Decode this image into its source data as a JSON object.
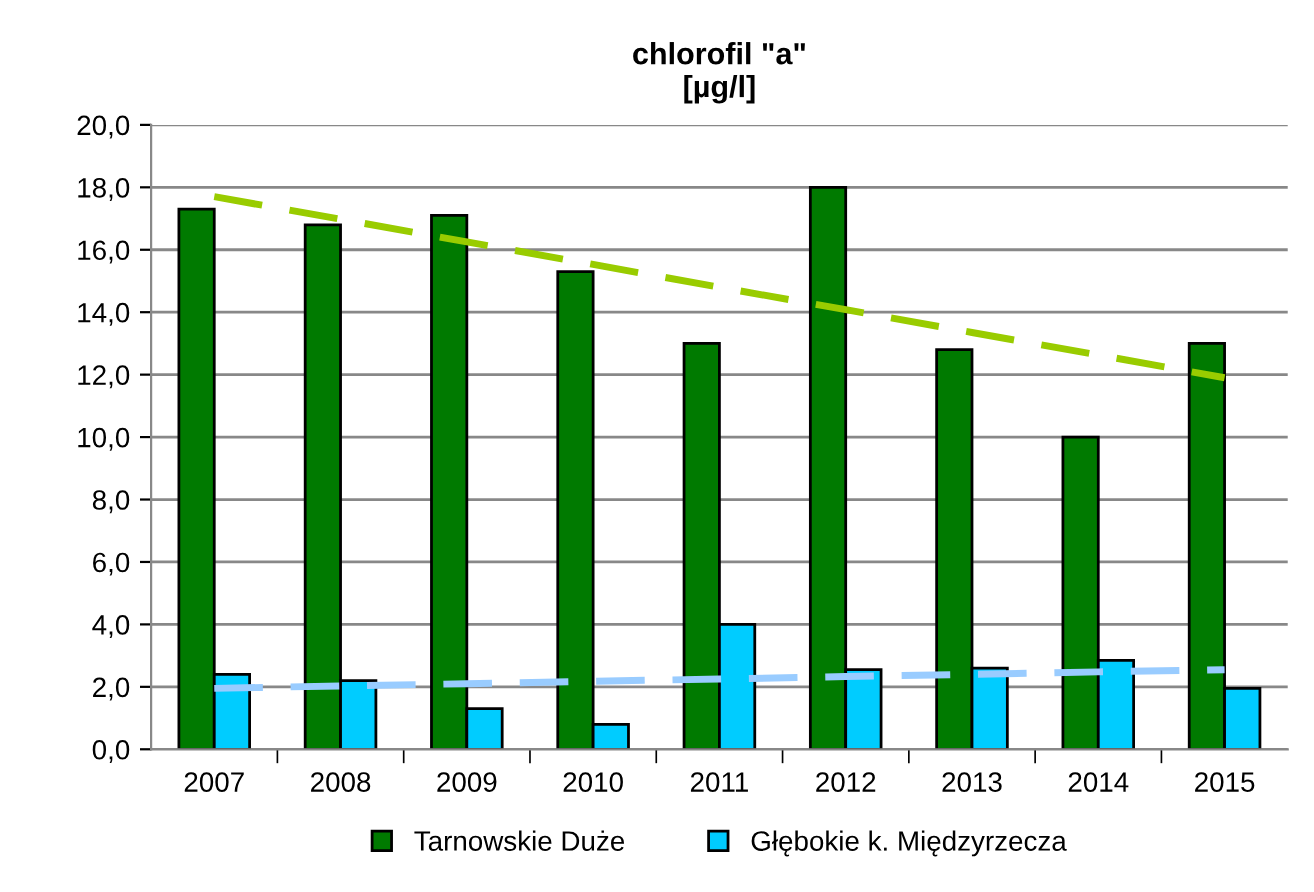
{
  "chart_data": {
    "type": "bar",
    "title": "chlorofil \"a\"\n[µg/l]",
    "categories": [
      "2007",
      "2008",
      "2009",
      "2010",
      "2011",
      "2012",
      "2013",
      "2014",
      "2015"
    ],
    "series": [
      {
        "name": "Tarnowskie Duże",
        "color": "#007a00",
        "values": [
          17.3,
          16.8,
          17.1,
          15.3,
          13.0,
          18.0,
          12.8,
          10.0,
          13.0
        ]
      },
      {
        "name": "Głębokie k. Międzyrzecza",
        "color": "#00ccff",
        "values": [
          2.4,
          2.2,
          1.3,
          0.8,
          4.0,
          2.55,
          2.6,
          2.85,
          1.95
        ]
      },
      {
        "type": "line",
        "color": "#99cc00",
        "line_style": "dashed",
        "values": [
          17.7,
          16.98,
          16.25,
          15.53,
          14.8,
          14.08,
          13.35,
          12.63,
          11.9
        ]
      },
      {
        "type": "line",
        "color": "#99ccff",
        "line_style": "dashed",
        "values": [
          1.95,
          2.03,
          2.1,
          2.18,
          2.25,
          2.33,
          2.4,
          2.48,
          2.55
        ]
      }
    ],
    "ylim": [
      0,
      20
    ],
    "yticks": [
      {
        "value": 0,
        "label": "0,0"
      },
      {
        "value": 2,
        "label": "2,0"
      },
      {
        "value": 4,
        "label": "4,0"
      },
      {
        "value": 6,
        "label": "6,0"
      },
      {
        "value": 8,
        "label": "8,0"
      },
      {
        "value": 10,
        "label": "10,0"
      },
      {
        "value": 12,
        "label": "12,0"
      },
      {
        "value": 14,
        "label": "14,0"
      },
      {
        "value": 16,
        "label": "16,0"
      },
      {
        "value": 18,
        "label": "18,0"
      },
      {
        "value": 20,
        "label": "20,0"
      }
    ],
    "grid": "y",
    "legend": "bottom"
  }
}
